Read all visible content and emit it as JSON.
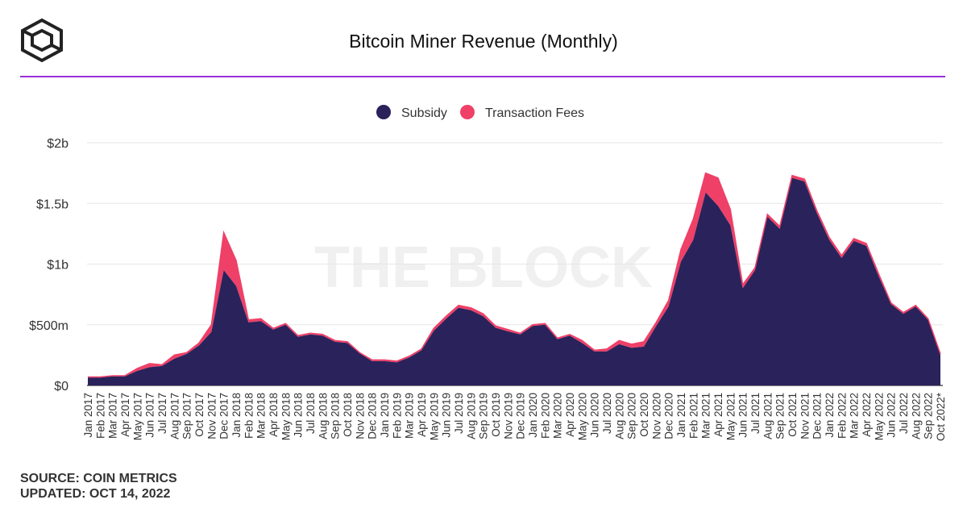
{
  "header": {
    "title": "Bitcoin Miner Revenue (Monthly)",
    "logo": "the-block-cube-logo"
  },
  "watermark": "THE BLOCK",
  "footer": {
    "source": "SOURCE: COIN METRICS",
    "updated": "UPDATED: OCT 14, 2022"
  },
  "colors": {
    "subsidy": "#2a225b",
    "fees": "#ef4068",
    "accent": "#9b30d9"
  },
  "chart_data": {
    "type": "area",
    "stacked": true,
    "title": "Bitcoin Miner Revenue (Monthly)",
    "xlabel": "",
    "ylabel": "",
    "ylim": [
      0,
      2000000000
    ],
    "y_ticks": [
      {
        "value": 0,
        "label": "$0"
      },
      {
        "value": 500000000,
        "label": "$500m"
      },
      {
        "value": 1000000000,
        "label": "$1b"
      },
      {
        "value": 1500000000,
        "label": "$1.5b"
      },
      {
        "value": 2000000000,
        "label": "$2b"
      }
    ],
    "grid": true,
    "legend": "top-center",
    "categories": [
      "Jan 2017",
      "Feb 2017",
      "Mar 2017",
      "Apr 2017",
      "May 2017",
      "Jun 2017",
      "Jul 2017",
      "Aug 2017",
      "Sep 2017",
      "Oct 2017",
      "Nov 2017",
      "Dec 2017",
      "Jan 2018",
      "Feb 2018",
      "Mar 2018",
      "Apr 2018",
      "May 2018",
      "Jun 2018",
      "Jul 2018",
      "Aug 2018",
      "Sep 2018",
      "Oct 2018",
      "Nov 2018",
      "Dec 2018",
      "Jan 2019",
      "Feb 2019",
      "Mar 2019",
      "Apr 2019",
      "May 2019",
      "Jun 2019",
      "Jul 2019",
      "Aug 2019",
      "Sep 2019",
      "Oct 2019",
      "Nov 2019",
      "Dec 2019",
      "Jan 2020",
      "Feb 2020",
      "Mar 2020",
      "Apr 2020",
      "May 2020",
      "Jun 2020",
      "Jul 2020",
      "Aug 2020",
      "Sep 2020",
      "Oct 2020",
      "Nov 2020",
      "Dec 2020",
      "Jan 2021",
      "Feb 2021",
      "Mar 2021",
      "Apr 2021",
      "May 2021",
      "Jun 2021",
      "Jul 2021",
      "Aug 2021",
      "Sep 2021",
      "Oct 2021",
      "Nov 2021",
      "Dec 2021",
      "Jan 2022",
      "Feb 2022",
      "Mar 2022",
      "Apr 2022",
      "May 2022",
      "Jun 2022",
      "Jul 2022",
      "Aug 2022",
      "Sep 2022",
      "Oct 2022*"
    ],
    "series": [
      {
        "name": "Subsidy",
        "color": "#2a225b",
        "values": [
          65,
          65,
          75,
          75,
          120,
          150,
          160,
          220,
          260,
          330,
          440,
          950,
          820,
          520,
          530,
          460,
          500,
          400,
          420,
          410,
          360,
          350,
          265,
          200,
          200,
          190,
          230,
          290,
          450,
          550,
          640,
          620,
          570,
          475,
          445,
          420,
          490,
          500,
          380,
          410,
          350,
          280,
          280,
          340,
          310,
          320,
          490,
          650,
          1020,
          1200,
          1590,
          1480,
          1320,
          800,
          950,
          1390,
          1290,
          1710,
          1680,
          1420,
          1200,
          1050,
          1190,
          1150,
          900,
          670,
          590,
          650,
          540,
          250
        ]
      },
      {
        "name": "Transaction Fees",
        "color": "#ef4068",
        "values": [
          5,
          5,
          5,
          5,
          20,
          30,
          10,
          30,
          10,
          20,
          60,
          310,
          210,
          20,
          20,
          10,
          10,
          10,
          10,
          10,
          10,
          10,
          5,
          10,
          10,
          10,
          10,
          10,
          20,
          20,
          20,
          20,
          20,
          15,
          15,
          10,
          10,
          10,
          10,
          10,
          20,
          10,
          20,
          30,
          30,
          40,
          30,
          50,
          100,
          170,
          160,
          230,
          130,
          30,
          20,
          20,
          20,
          20,
          20,
          20,
          20,
          20,
          20,
          20,
          20,
          10,
          10,
          10,
          10,
          10
        ]
      }
    ],
    "value_unit": "millions USD"
  }
}
